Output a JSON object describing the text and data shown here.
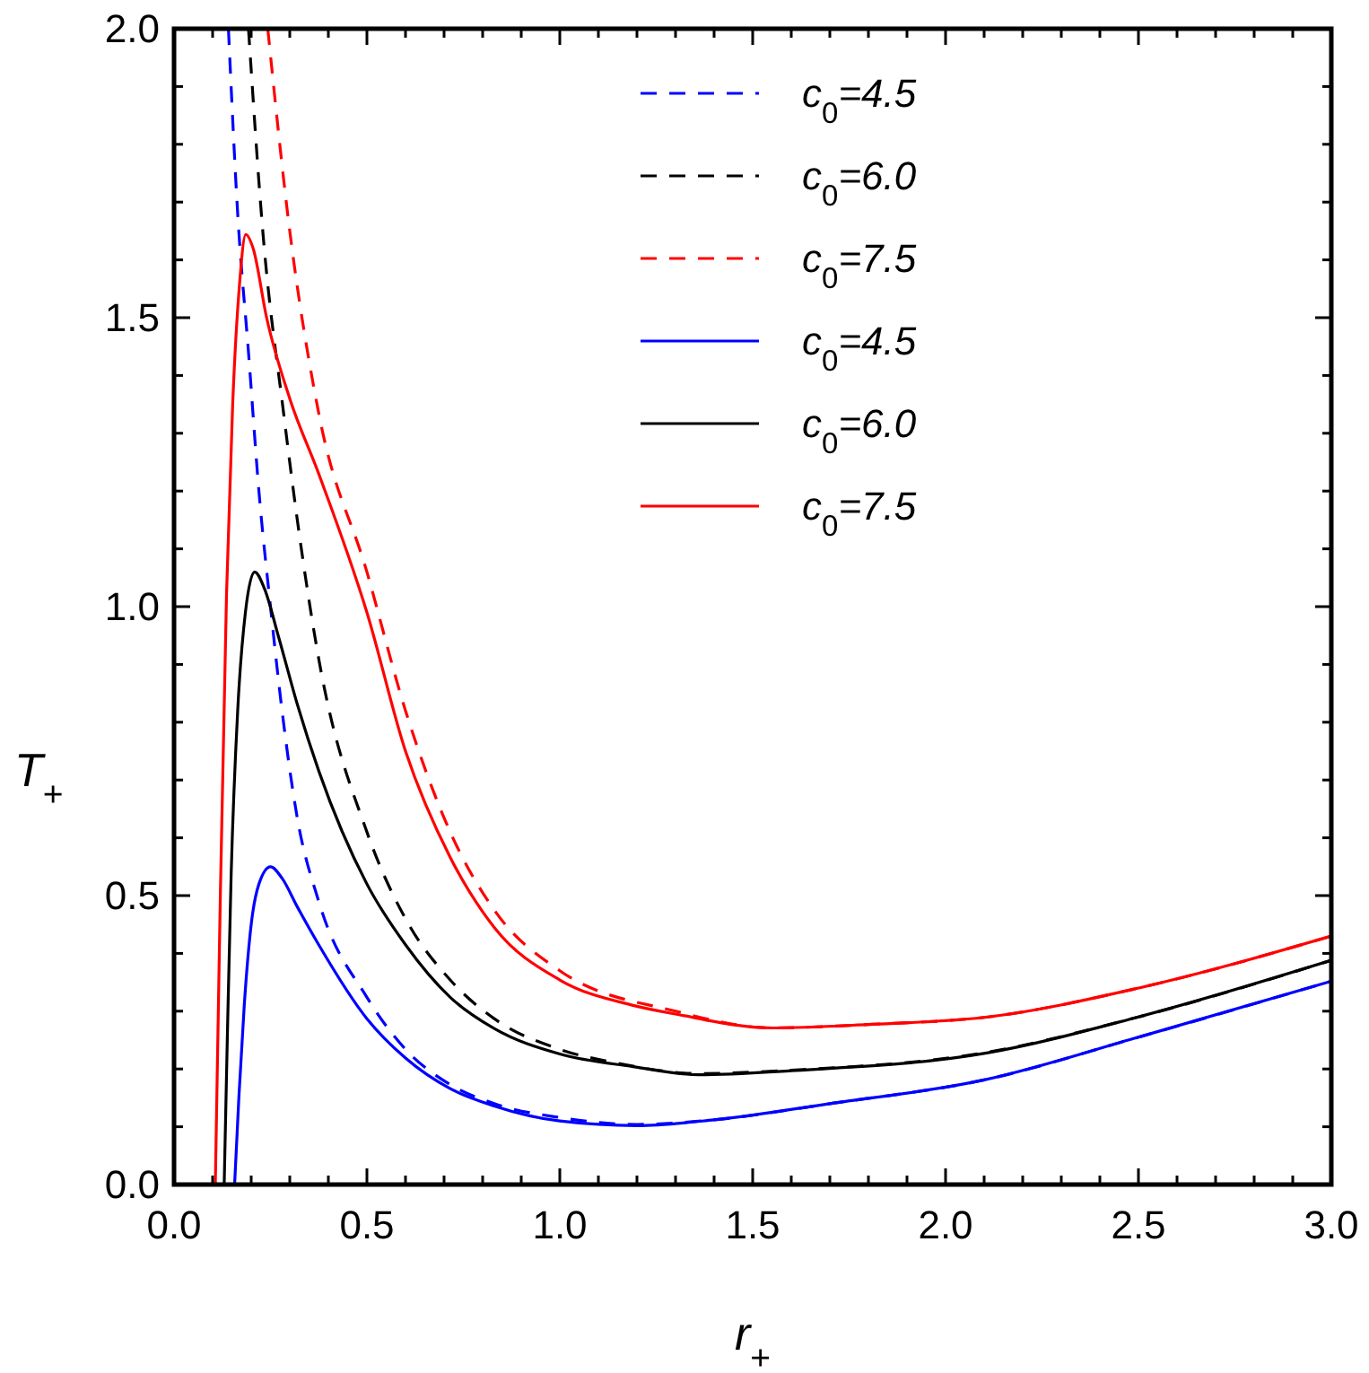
{
  "chart_data": {
    "type": "line",
    "xlabel": "r$_{+}$",
    "ylabel": "T$_{+}$",
    "xlim": [
      0,
      3
    ],
    "ylim": [
      0,
      2
    ],
    "xticks": [
      {
        "value": 0,
        "label": "0.0"
      },
      {
        "value": 0.1,
        "label": null
      },
      {
        "value": 0.2,
        "label": null
      },
      {
        "value": 0.3,
        "label": null
      },
      {
        "value": 0.4,
        "label": null
      },
      0.5,
      {
        "value": 0.6,
        "label": null
      },
      {
        "value": 0.7,
        "label": null
      },
      {
        "value": 0.8,
        "label": null
      },
      {
        "value": 0.9,
        "label": null
      },
      {
        "value": 1,
        "label": "1.0"
      },
      {
        "value": 1.1,
        "label": null
      },
      {
        "value": 1.2,
        "label": null
      },
      {
        "value": 1.3,
        "label": null
      },
      {
        "value": 1.4,
        "label": null
      },
      1.5,
      {
        "value": 1.6,
        "label": null
      },
      {
        "value": 1.7,
        "label": null
      },
      {
        "value": 1.8,
        "label": null
      },
      {
        "value": 1.9,
        "label": null
      },
      {
        "value": 2,
        "label": "2.0"
      },
      {
        "value": 2.1,
        "label": null
      },
      {
        "value": 2.2,
        "label": null
      },
      {
        "value": 2.3,
        "label": null
      },
      {
        "value": 2.4,
        "label": null
      },
      2.5,
      {
        "value": 2.6,
        "label": null
      },
      {
        "value": 2.7,
        "label": null
      },
      {
        "value": 2.8,
        "label": null
      },
      {
        "value": 2.9,
        "label": null
      },
      {
        "value": 3,
        "label": "3.0"
      }
    ],
    "yticks": [
      {
        "value": 0,
        "label": "0.0"
      },
      {
        "value": 0.1,
        "label": null
      },
      {
        "value": 0.2,
        "label": null
      },
      {
        "value": 0.3,
        "label": null
      },
      {
        "value": 0.4,
        "label": null
      },
      0.5,
      {
        "value": 0.6,
        "label": null
      },
      {
        "value": 0.7,
        "label": null
      },
      {
        "value": 0.8,
        "label": null
      },
      {
        "value": 0.9,
        "label": null
      },
      {
        "value": 1,
        "label": "1.0"
      },
      {
        "value": 1.1,
        "label": null
      },
      {
        "value": 1.2,
        "label": null
      },
      {
        "value": 1.3,
        "label": null
      },
      {
        "value": 1.4,
        "label": null
      },
      1.5,
      {
        "value": 1.6,
        "label": null
      },
      {
        "value": 1.7,
        "label": null
      },
      {
        "value": 1.8,
        "label": null
      },
      {
        "value": 1.9,
        "label": null
      },
      {
        "value": 2,
        "label": "2.0"
      }
    ],
    "grid": false,
    "legend": "top right",
    "marker": "none",
    "series": [
      {
        "name": "c$_{0}$=4.5",
        "color": "#0000ff",
        "line_style": "dashed",
        "x": [
          0.141,
          0.165,
          0.193,
          0.22,
          0.25,
          0.28,
          0.318,
          0.375,
          0.5,
          0.6,
          0.716,
          0.83,
          1.0,
          1.2,
          1.4,
          1.7,
          2.1,
          2.5,
          3.0
        ],
        "values": [
          2.0,
          1.68,
          1.44,
          1.2,
          1.0,
          0.82,
          0.64,
          0.49,
          0.324,
          0.234,
          0.173,
          0.14,
          0.116,
          0.104,
          0.112,
          0.14,
          0.181,
          0.255,
          0.352
        ]
      },
      {
        "name": "c$_{0}$=6.0",
        "color": "#000000",
        "line_style": "dashed",
        "x": [
          0.193,
          0.23,
          0.284,
          0.33,
          0.375,
          0.5,
          0.6,
          0.716,
          0.83,
          1.0,
          1.15,
          1.36,
          1.6,
          2.1,
          2.5,
          3.0
        ],
        "values": [
          2.0,
          1.65,
          1.335,
          1.1,
          0.91,
          0.61,
          0.46,
          0.354,
          0.287,
          0.234,
          0.21,
          0.192,
          0.198,
          0.228,
          0.29,
          0.388
        ]
      },
      {
        "name": "c$_{0}$=7.5",
        "color": "#ff0000",
        "line_style": "dashed",
        "x": [
          0.243,
          0.3,
          0.375,
          0.5,
          0.6,
          0.716,
          0.83,
          1.0,
          1.3,
          1.55,
          1.8,
          2.11,
          2.5,
          3.0
        ],
        "values": [
          2.0,
          1.65,
          1.335,
          1.06,
          0.82,
          0.61,
          0.475,
          0.37,
          0.3,
          0.271,
          0.277,
          0.29,
          0.34,
          0.43
        ]
      },
      {
        "name": "c$_{0}$=4.5",
        "color": "#0000ff",
        "line_style": "solid",
        "x": [
          0.157,
          0.168,
          0.182,
          0.2,
          0.22,
          0.25,
          0.28,
          0.32,
          0.375,
          0.5,
          0.6,
          0.716,
          0.83,
          1.0,
          1.2,
          1.4,
          1.7,
          2.1,
          2.5,
          3.0
        ],
        "values": [
          0,
          0.15,
          0.31,
          0.45,
          0.52,
          0.55,
          0.53,
          0.48,
          0.415,
          0.287,
          0.219,
          0.166,
          0.136,
          0.11,
          0.102,
          0.112,
          0.14,
          0.181,
          0.255,
          0.352
        ]
      },
      {
        "name": "c$_{0}$=6.0",
        "color": "#000000",
        "line_style": "solid",
        "x": [
          0.13,
          0.138,
          0.148,
          0.165,
          0.185,
          0.209,
          0.235,
          0.27,
          0.32,
          0.375,
          0.5,
          0.6,
          0.716,
          0.83,
          1.0,
          1.19,
          1.36,
          1.6,
          2.11,
          2.5,
          3.0
        ],
        "values": [
          0,
          0.25,
          0.535,
          0.82,
          0.99,
          1.06,
          1.03,
          0.95,
          0.83,
          0.716,
          0.52,
          0.415,
          0.324,
          0.27,
          0.226,
          0.204,
          0.19,
          0.197,
          0.228,
          0.29,
          0.388
        ]
      },
      {
        "name": "c$_{0}$=7.5",
        "color": "#ff0000",
        "line_style": "solid",
        "x": [
          0.107,
          0.12,
          0.136,
          0.152,
          0.17,
          0.186,
          0.205,
          0.24,
          0.3,
          0.375,
          0.5,
          0.6,
          0.716,
          0.83,
          1.0,
          1.19,
          1.3,
          1.55,
          1.8,
          2.11,
          2.5,
          3.0
        ],
        "values": [
          0,
          0.5,
          1.02,
          1.35,
          1.56,
          1.644,
          1.62,
          1.5,
          1.36,
          1.23,
          0.99,
          0.75,
          0.566,
          0.445,
          0.354,
          0.31,
          0.295,
          0.271,
          0.277,
          0.29,
          0.34,
          0.43
        ]
      }
    ]
  }
}
